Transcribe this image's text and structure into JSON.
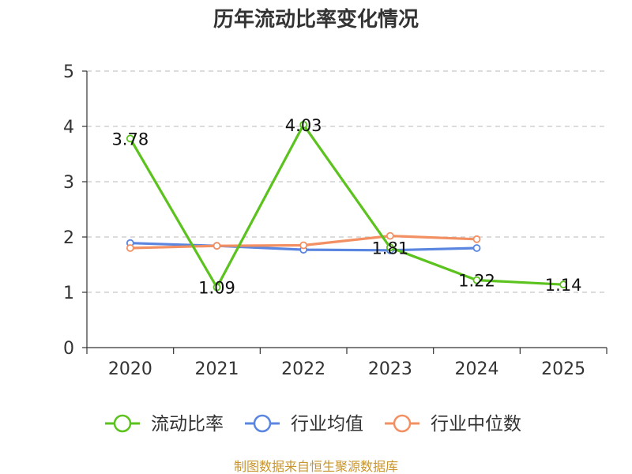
{
  "chart_data": {
    "type": "line",
    "title": "历年流动比率变化情况",
    "categories": [
      "2020",
      "2021",
      "2022",
      "2023",
      "2024",
      "2025"
    ],
    "ylim": [
      0,
      5
    ],
    "yticks": [
      "0",
      "1",
      "2",
      "3",
      "4",
      "5"
    ],
    "grid": true,
    "legend_position": "bottom",
    "series": [
      {
        "name": "流动比率",
        "color": "#5bc21e",
        "values": [
          3.78,
          1.09,
          4.03,
          1.81,
          1.22,
          1.14
        ],
        "labels": [
          "3.78",
          "1.09",
          "4.03",
          "1.81",
          "1.22",
          "1.14"
        ]
      },
      {
        "name": "行业均值",
        "color": "#5a85e0",
        "values": [
          1.89,
          1.84,
          1.77,
          1.76,
          1.8,
          null
        ]
      },
      {
        "name": "行业中位数",
        "color": "#f39063",
        "values": [
          1.8,
          1.84,
          1.85,
          2.02,
          1.96,
          null
        ]
      }
    ]
  },
  "source_text": "制图数据来自恒生聚源数据库",
  "source_color": "#c8952e"
}
